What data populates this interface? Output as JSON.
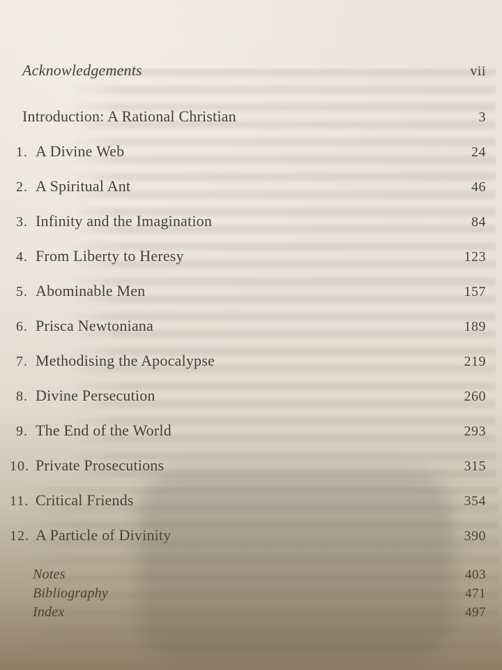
{
  "toc": {
    "front_matter": [
      {
        "label": "Acknowledgements",
        "page": "vii"
      }
    ],
    "introduction": {
      "label": "Introduction: A Rational Christian",
      "page": "3"
    },
    "chapters": [
      {
        "num": "1.",
        "title": "A Divine Web",
        "page": "24"
      },
      {
        "num": "2.",
        "title": "A Spiritual Ant",
        "page": "46"
      },
      {
        "num": "3.",
        "title": "Infinity and the Imagination",
        "page": "84"
      },
      {
        "num": "4.",
        "title": "From Liberty to Heresy",
        "page": "123"
      },
      {
        "num": "5.",
        "title": "Abominable Men",
        "page": "157"
      },
      {
        "num": "6.",
        "title": "Prisca Newtoniana",
        "page": "189"
      },
      {
        "num": "7.",
        "title": "Methodising the Apocalypse",
        "page": "219"
      },
      {
        "num": "8.",
        "title": "Divine Persecution",
        "page": "260"
      },
      {
        "num": "9.",
        "title": "The End of the World",
        "page": "293"
      },
      {
        "num": "10.",
        "title": "Private Prosecutions",
        "page": "315"
      },
      {
        "num": "11.",
        "title": "Critical Friends",
        "page": "354"
      },
      {
        "num": "12.",
        "title": "A Particle of Divinity",
        "page": "390"
      }
    ],
    "back_matter": [
      {
        "label": "Notes",
        "page": "403"
      },
      {
        "label": "Bibliography",
        "page": "471"
      },
      {
        "label": "Index",
        "page": "497"
      }
    ]
  },
  "colors": {
    "page_background": "#e9e3d9",
    "text": "#473f35",
    "shadow_overlay": "#685f56"
  }
}
